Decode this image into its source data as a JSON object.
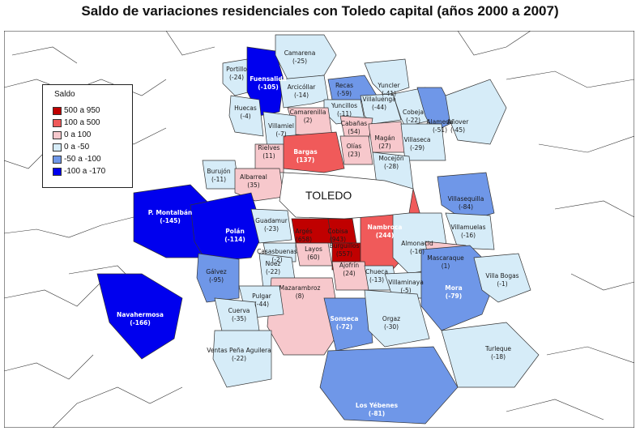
{
  "title": "Saldo de variaciones residenciales con Toledo capital (años 2000 a 2007)",
  "city_label": "TOLEDO",
  "legend": {
    "title": "Saldo",
    "items": [
      {
        "range": "500  a  950",
        "color": "#c00000"
      },
      {
        "range": "100  a  500",
        "color": "#f05a5a"
      },
      {
        "range": "0  a  100",
        "color": "#f7c8cc"
      },
      {
        "range": "0  a  -50",
        "color": "#d6ecf8"
      },
      {
        "range": "-50  a  -100",
        "color": "#6f97e8"
      },
      {
        "range": "-100  a  -170",
        "color": "#0000ee"
      }
    ]
  },
  "municipalities": [
    {
      "name": "Portillo",
      "value": "(-24)",
      "color": "#d6ecf8"
    },
    {
      "name": "Fuensalida",
      "value": "(-105)",
      "color": "#0000ee"
    },
    {
      "name": "Camarena",
      "value": "(-25)",
      "color": "#d6ecf8"
    },
    {
      "name": "Arcicóllar",
      "value": "(-14)",
      "color": "#d6ecf8"
    },
    {
      "name": "Recas",
      "value": "(-59)",
      "color": "#6f97e8"
    },
    {
      "name": "Yuncler",
      "value": "(-41)",
      "color": "#d6ecf8"
    },
    {
      "name": "Yuncillos",
      "value": "(-11)",
      "color": "#d6ecf8"
    },
    {
      "name": "Villaluenga",
      "value": "(-44)",
      "color": "#d6ecf8"
    },
    {
      "name": "Cobeja",
      "value": "(-22)",
      "color": "#d6ecf8"
    },
    {
      "name": "Alameda",
      "value": "(-51)",
      "color": "#6f97e8"
    },
    {
      "name": "Añover",
      "value": "(-45)",
      "color": "#d6ecf8"
    },
    {
      "name": "Huecas",
      "value": "(-4)",
      "color": "#d6ecf8"
    },
    {
      "name": "Camarenilla",
      "value": "(2)",
      "color": "#f7c8cc"
    },
    {
      "name": "Cabañas",
      "value": "(54)",
      "color": "#f7c8cc"
    },
    {
      "name": "Villamiel",
      "value": "(-7)",
      "color": "#d6ecf8"
    },
    {
      "name": "Magán",
      "value": "(27)",
      "color": "#f7c8cc"
    },
    {
      "name": "Villaseca",
      "value": "(-29)",
      "color": "#d6ecf8"
    },
    {
      "name": "Olías",
      "value": "(23)",
      "color": "#f7c8cc"
    },
    {
      "name": "Rielves",
      "value": "(11)",
      "color": "#f7c8cc"
    },
    {
      "name": "Bargas",
      "value": "(137)",
      "color": "#f05a5a"
    },
    {
      "name": "Mocejón",
      "value": "(-28)",
      "color": "#d6ecf8"
    },
    {
      "name": "Burujón",
      "value": "(-11)",
      "color": "#d6ecf8"
    },
    {
      "name": "Albarreal",
      "value": "(35)",
      "color": "#f7c8cc"
    },
    {
      "name": "P. Montalbán",
      "value": "(-145)",
      "color": "#0000ee"
    },
    {
      "name": "Polán",
      "value": "(-114)",
      "color": "#0000ee"
    },
    {
      "name": "Guadamur",
      "value": "(-23)",
      "color": "#d6ecf8"
    },
    {
      "name": "Argés",
      "value": "(658)",
      "color": "#c00000"
    },
    {
      "name": "Cobisa",
      "value": "(943)",
      "color": "#c00000"
    },
    {
      "name": "Layos",
      "value": "(60)",
      "color": "#f7c8cc"
    },
    {
      "name": "Burguillos",
      "value": "(557)",
      "color": "#c00000"
    },
    {
      "name": "Nambroca",
      "value": "(244)",
      "color": "#f05a5a"
    },
    {
      "name": "Villasequilla",
      "value": "(-84)",
      "color": "#6f97e8"
    },
    {
      "name": "Villamuelas",
      "value": "(-16)",
      "color": "#d6ecf8"
    },
    {
      "name": "Almonacid",
      "value": "(-16)",
      "color": "#d6ecf8"
    },
    {
      "name": "Casasbuenas",
      "value": "(-2)",
      "color": "#d6ecf8"
    },
    {
      "name": "Noez",
      "value": "(-22)",
      "color": "#d6ecf8"
    },
    {
      "name": "Ajofrín",
      "value": "(24)",
      "color": "#f7c8cc"
    },
    {
      "name": "Mascaraque",
      "value": "(1)",
      "color": "#f7c8cc"
    },
    {
      "name": "Gálvez",
      "value": "(-95)",
      "color": "#6f97e8"
    },
    {
      "name": "Chueca",
      "value": "(-13)",
      "color": "#d6ecf8"
    },
    {
      "name": "Villaminaya",
      "value": "(-5)",
      "color": "#d6ecf8"
    },
    {
      "name": "Mora",
      "value": "(-79)",
      "color": "#6f97e8"
    },
    {
      "name": "Mazarambroz",
      "value": "(8)",
      "color": "#f7c8cc"
    },
    {
      "name": "Villa Bogas",
      "value": "(-1)",
      "color": "#d6ecf8"
    },
    {
      "name": "Pulgar",
      "value": "(-44)",
      "color": "#d6ecf8"
    },
    {
      "name": "Navahermosa",
      "value": "(-166)",
      "color": "#0000ee"
    },
    {
      "name": "Cuerva",
      "value": "(-35)",
      "color": "#d6ecf8"
    },
    {
      "name": "Sonseca",
      "value": "(-72)",
      "color": "#6f97e8"
    },
    {
      "name": "Orgaz",
      "value": "(-30)",
      "color": "#d6ecf8"
    },
    {
      "name": "Ventas Peña Aguilera",
      "value": "(-22)",
      "color": "#d6ecf8"
    },
    {
      "name": "Turleque",
      "value": "(-18)",
      "color": "#d6ecf8"
    },
    {
      "name": "Los Yébenes",
      "value": "(-81)",
      "color": "#6f97e8"
    }
  ]
}
